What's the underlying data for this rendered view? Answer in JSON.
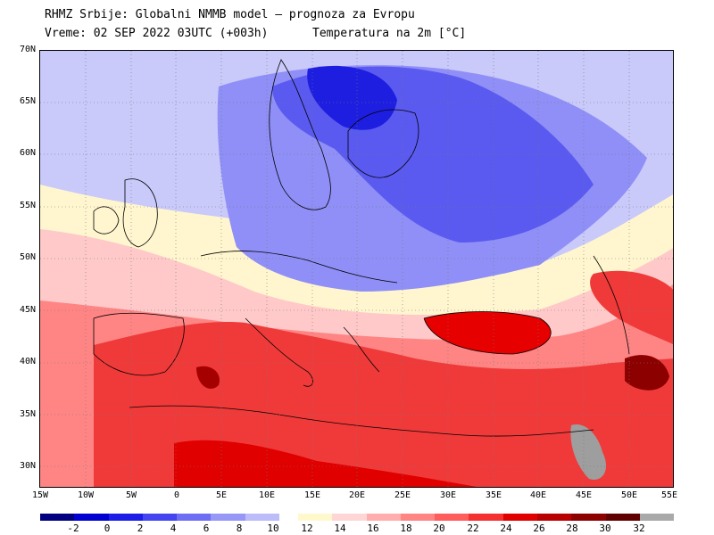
{
  "header": {
    "line1": "RHMZ Srbije: Globalni NMMB model — prognoza za Evropu",
    "line2": "Vreme: 02 SEP 2022 03UTC (+003h)",
    "parameter": "Temperatura na 2m [°C]"
  },
  "axes": {
    "lat_labels": [
      "70N",
      "65N",
      "60N",
      "55N",
      "50N",
      "45N",
      "40N",
      "35N",
      "30N"
    ],
    "lon_labels": [
      "15W",
      "10W",
      "5W",
      "0",
      "5E",
      "10E",
      "15E",
      "20E",
      "25E",
      "30E",
      "35E",
      "40E",
      "45E",
      "50E",
      "55E"
    ]
  },
  "colorbar": {
    "labels": [
      "-2",
      "0",
      "2",
      "4",
      "6",
      "8",
      "10",
      "12",
      "14",
      "16",
      "18",
      "20",
      "22",
      "24",
      "26",
      "28",
      "30",
      "32"
    ],
    "colors_cold": [
      "#000080",
      "#0000d0",
      "#1d1de8",
      "#4444f0",
      "#6e6ef5",
      "#9797f8",
      "#bcbcfb"
    ],
    "colors_warm": [
      "#fff8cc",
      "#ffd6d6",
      "#ffadad",
      "#ff8585",
      "#ff5c5c",
      "#f53030",
      "#e00000",
      "#b80000",
      "#8c0000",
      "#600000",
      "#a9a9a9"
    ]
  },
  "map": {
    "region": "Europe",
    "lon_range": [
      -15,
      55
    ],
    "lat_range": [
      28,
      70
    ],
    "colors": {
      "ocean_cool": "#c9c9fa",
      "cold_core": "#1e1ee0",
      "cold": "#5a5af0",
      "cool": "#8f8ff7",
      "mild": "#fff6cf",
      "warm_pink": "#ffc9c9",
      "warm": "#ff8585",
      "hot": "#f03a3a",
      "very_hot": "#e00000",
      "extreme": "#a40000",
      "gray_high": "#9e9e9e",
      "coast": "#000000"
    }
  }
}
